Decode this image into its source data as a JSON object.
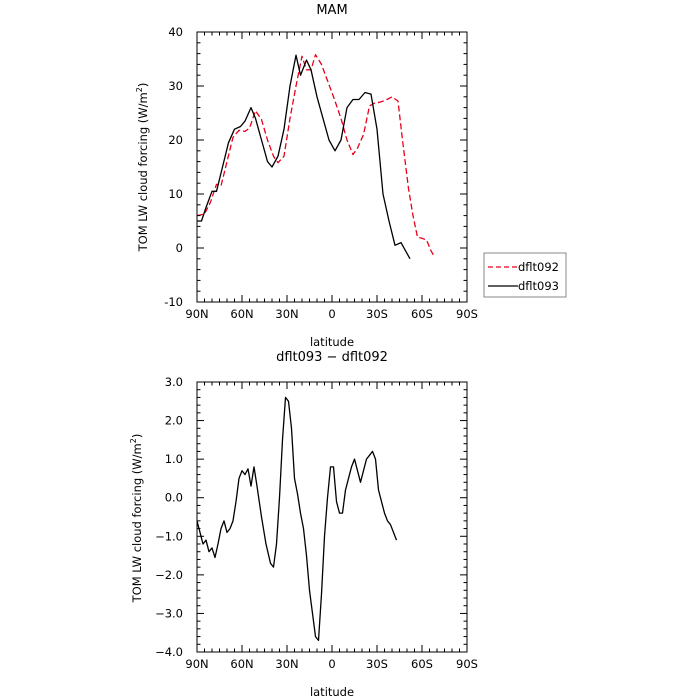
{
  "chart_data": [
    {
      "type": "line",
      "title": "MAM",
      "xlabel": "latitude",
      "ylabel_prefix": "TOM LW cloud forcing  (W/m",
      "ylabel_sup": "2",
      "ylabel_suffix": ")",
      "xlim": [
        90,
        -90
      ],
      "ylim": [
        -10,
        40
      ],
      "xticks": [
        90,
        60,
        30,
        0,
        -30,
        -60,
        -90
      ],
      "xtick_labels": [
        "90N",
        "60N",
        "30N",
        "0",
        "30S",
        "60S",
        "90S"
      ],
      "yticks": [
        -10,
        0,
        10,
        20,
        30,
        40
      ],
      "ytick_labels": [
        "-10",
        "0",
        "10",
        "20",
        "30",
        "40"
      ],
      "grid": false,
      "legend_position": "outside-right-bottom",
      "series": [
        {
          "name": "dflt092",
          "color": "#e8001c",
          "dash": "dashed",
          "points": [
            [
              90,
              6
            ],
            [
              85,
              6.3
            ],
            [
              81,
              8.5
            ],
            [
              77,
              11.8
            ],
            [
              74,
              11.5
            ],
            [
              70,
              16
            ],
            [
              66,
              20.5
            ],
            [
              62,
              21.8
            ],
            [
              58,
              21.6
            ],
            [
              55,
              22.2
            ],
            [
              51,
              25.4
            ],
            [
              47,
              23.8
            ],
            [
              43,
              20
            ],
            [
              39,
              17
            ],
            [
              36,
              15.8
            ],
            [
              32,
              17
            ],
            [
              28,
              24
            ],
            [
              24,
              30
            ],
            [
              20,
              35.5
            ],
            [
              17,
              33
            ],
            [
              14,
              33
            ],
            [
              11,
              35.8
            ],
            [
              7,
              34
            ],
            [
              3,
              31
            ],
            [
              -1,
              28
            ],
            [
              -6,
              24
            ],
            [
              -10,
              20
            ],
            [
              -14,
              17.3
            ],
            [
              -17,
              18.5
            ],
            [
              -21,
              21
            ],
            [
              -25,
              26.3
            ],
            [
              -28,
              26.8
            ],
            [
              -32,
              27
            ],
            [
              -36,
              27.4
            ],
            [
              -40,
              28
            ],
            [
              -44,
              27.2
            ],
            [
              -47,
              20
            ],
            [
              -51,
              11
            ],
            [
              -54,
              6
            ],
            [
              -57,
              2
            ],
            [
              -60,
              1.8
            ],
            [
              -63,
              1.5
            ],
            [
              -66,
              -0.5
            ],
            [
              -68,
              -1.5
            ]
          ]
        },
        {
          "name": "dflt093",
          "color": "#000000",
          "dash": "solid",
          "points": [
            [
              90,
              5
            ],
            [
              87,
              5
            ],
            [
              84,
              7.5
            ],
            [
              80,
              10.5
            ],
            [
              77,
              10.5
            ],
            [
              73,
              15
            ],
            [
              69,
              19.5
            ],
            [
              65,
              22
            ],
            [
              61,
              22.5
            ],
            [
              58,
              23.5
            ],
            [
              54,
              26
            ],
            [
              51,
              24
            ],
            [
              47,
              20
            ],
            [
              43,
              16
            ],
            [
              40,
              15
            ],
            [
              36,
              17
            ],
            [
              32,
              22
            ],
            [
              28,
              30
            ],
            [
              24,
              35.7
            ],
            [
              21,
              32
            ],
            [
              17,
              34.8
            ],
            [
              14,
              33
            ],
            [
              10,
              28
            ],
            [
              6,
              24
            ],
            [
              2,
              20
            ],
            [
              -2,
              18
            ],
            [
              -6,
              20
            ],
            [
              -10,
              26
            ],
            [
              -14,
              27.5
            ],
            [
              -18,
              27.5
            ],
            [
              -22,
              28.8
            ],
            [
              -26,
              28.5
            ],
            [
              -30,
              22
            ],
            [
              -34,
              10
            ],
            [
              -38,
              5
            ],
            [
              -42,
              0.5
            ],
            [
              -46,
              1
            ],
            [
              -50,
              -1
            ],
            [
              -52,
              -2
            ]
          ]
        }
      ]
    },
    {
      "type": "line",
      "title": "dflt093 − dflt092",
      "xlabel": "latitude",
      "ylabel_prefix": "TOM LW cloud forcing  (W/m",
      "ylabel_sup": "2",
      "ylabel_suffix": ")",
      "xlim": [
        90,
        -90
      ],
      "ylim": [
        -4,
        3
      ],
      "xticks": [
        90,
        60,
        30,
        0,
        -30,
        -60,
        -90
      ],
      "xtick_labels": [
        "90N",
        "60N",
        "30N",
        "0",
        "30S",
        "60S",
        "90S"
      ],
      "yticks": [
        -4,
        -3,
        -2,
        -1,
        0,
        1,
        2,
        3
      ],
      "ytick_labels": [
        "−4.0",
        "−3.0",
        "−2.0",
        "−1.0",
        "0.0",
        "1.0",
        "2.0",
        "3.0"
      ],
      "grid": false,
      "series": [
        {
          "name": "",
          "color": "#000000",
          "dash": "solid",
          "points": [
            [
              90,
              -0.6
            ],
            [
              88,
              -0.9
            ],
            [
              86,
              -1.2
            ],
            [
              84,
              -1.1
            ],
            [
              82,
              -1.4
            ],
            [
              80,
              -1.3
            ],
            [
              78,
              -1.55
            ],
            [
              76,
              -1.2
            ],
            [
              74,
              -0.8
            ],
            [
              72,
              -0.6
            ],
            [
              70,
              -0.9
            ],
            [
              68,
              -0.8
            ],
            [
              66,
              -0.6
            ],
            [
              64,
              -0.1
            ],
            [
              62,
              0.5
            ],
            [
              60,
              0.7
            ],
            [
              58,
              0.6
            ],
            [
              56,
              0.75
            ],
            [
              54,
              0.3
            ],
            [
              52,
              0.8
            ],
            [
              50,
              0.3
            ],
            [
              47,
              -0.5
            ],
            [
              44,
              -1.2
            ],
            [
              41,
              -1.7
            ],
            [
              39,
              -1.8
            ],
            [
              37,
              -1.2
            ],
            [
              35,
              0.0
            ],
            [
              33,
              1.5
            ],
            [
              31,
              2.6
            ],
            [
              29,
              2.5
            ],
            [
              27,
              1.8
            ],
            [
              25,
              0.5
            ],
            [
              23,
              0.1
            ],
            [
              21,
              -0.4
            ],
            [
              19,
              -0.8
            ],
            [
              17,
              -1.5
            ],
            [
              15,
              -2.4
            ],
            [
              13,
              -3.0
            ],
            [
              11,
              -3.6
            ],
            [
              9,
              -3.7
            ],
            [
              7,
              -2.5
            ],
            [
              5,
              -1.0
            ],
            [
              3,
              0.0
            ],
            [
              1,
              0.8
            ],
            [
              -1,
              0.8
            ],
            [
              -3,
              -0.1
            ],
            [
              -5,
              -0.4
            ],
            [
              -7,
              -0.4
            ],
            [
              -9,
              0.2
            ],
            [
              -11,
              0.5
            ],
            [
              -13,
              0.8
            ],
            [
              -15,
              1.0
            ],
            [
              -17,
              0.7
            ],
            [
              -19,
              0.4
            ],
            [
              -21,
              0.7
            ],
            [
              -23,
              1.0
            ],
            [
              -25,
              1.1
            ],
            [
              -27,
              1.2
            ],
            [
              -29,
              1.0
            ],
            [
              -31,
              0.2
            ],
            [
              -33,
              -0.1
            ],
            [
              -35,
              -0.4
            ],
            [
              -37,
              -0.6
            ],
            [
              -39,
              -0.7
            ],
            [
              -41,
              -0.9
            ],
            [
              -43,
              -1.1
            ]
          ]
        }
      ]
    }
  ]
}
